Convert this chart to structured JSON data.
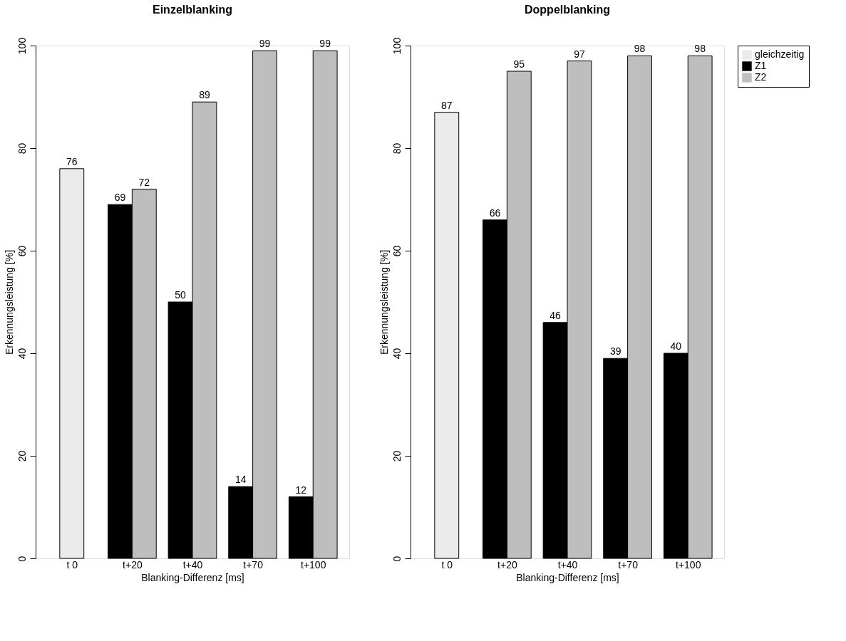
{
  "chart_data": [
    {
      "type": "bar",
      "title": "Einzelblanking",
      "xlabel": "Blanking-Differenz [ms]",
      "ylabel": "Erkennungsleistung [%]",
      "categories": [
        "t 0",
        "t+20",
        "t+40",
        "t+70",
        "t+100"
      ],
      "series": [
        {
          "name": "gleichzeitig",
          "color": "#ebebeb",
          "values": [
            76,
            null,
            null,
            null,
            null
          ]
        },
        {
          "name": "Z1",
          "color": "#000000",
          "values": [
            null,
            69,
            50,
            14,
            12
          ]
        },
        {
          "name": "Z2",
          "color": "#bebebe",
          "values": [
            null,
            72,
            89,
            99,
            99
          ]
        }
      ],
      "ylim": [
        0,
        100
      ],
      "yticks": [
        0,
        20,
        40,
        60,
        80,
        100
      ],
      "grid": false,
      "legend": "right",
      "data_labels": true
    },
    {
      "type": "bar",
      "title": "Doppelblanking",
      "xlabel": "Blanking-Differenz [ms]",
      "ylabel": "Erkennungsleistung [%]",
      "categories": [
        "t 0",
        "t+20",
        "t+40",
        "t+70",
        "t+100"
      ],
      "series": [
        {
          "name": "gleichzeitig",
          "color": "#ebebeb",
          "values": [
            87,
            null,
            null,
            null,
            null
          ]
        },
        {
          "name": "Z1",
          "color": "#000000",
          "values": [
            null,
            66,
            46,
            39,
            40
          ]
        },
        {
          "name": "Z2",
          "color": "#bebebe",
          "values": [
            null,
            95,
            97,
            98,
            98
          ]
        }
      ],
      "ylim": [
        0,
        100
      ],
      "yticks": [
        0,
        20,
        40,
        60,
        80,
        100
      ],
      "grid": false,
      "legend": "right",
      "data_labels": true
    }
  ]
}
